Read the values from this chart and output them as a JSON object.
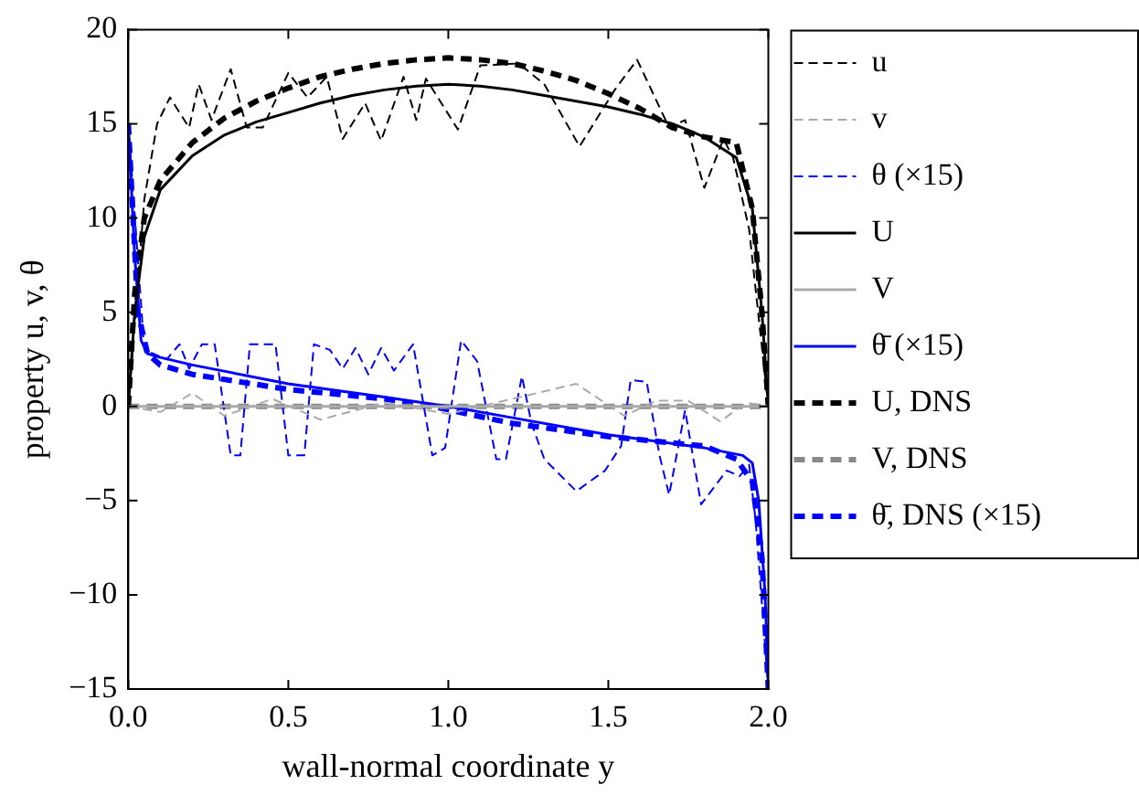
{
  "chart_data": {
    "type": "line",
    "xlabel": "wall-normal coordinate y",
    "ylabel": "property u, v, θ",
    "xlim": [
      0,
      2
    ],
    "ylim": [
      -15,
      20
    ],
    "xticks": [
      {
        "value": 0,
        "label": "0.0"
      },
      {
        "value": 0.5,
        "label": "0.5"
      },
      {
        "value": 1,
        "label": "1.0"
      },
      {
        "value": 1.5,
        "label": "1.5"
      },
      {
        "value": 2,
        "label": "2.0"
      }
    ],
    "yticks": [
      {
        "value": -15,
        "label": "−15"
      },
      {
        "value": -10,
        "label": "−10"
      },
      {
        "value": -5,
        "label": "−5"
      },
      0,
      5,
      10,
      15,
      20
    ],
    "grid": false,
    "legend": "right",
    "series": [
      {
        "name": "u",
        "color": "#000000",
        "line_style": "dashed",
        "x": [
          0,
          0.05,
          0.09,
          0.13,
          0.19,
          0.22,
          0.26,
          0.32,
          0.37,
          0.42,
          0.5,
          0.56,
          0.62,
          0.67,
          0.74,
          0.79,
          0.86,
          0.9,
          0.93,
          1.03,
          1.1,
          1.22,
          1.3,
          1.41,
          1.52,
          1.59,
          1.69,
          1.74,
          1.8,
          1.86,
          1.89,
          1.94,
          2
        ],
        "values": [
          0,
          11,
          15,
          16.4,
          14.8,
          17.1,
          15.2,
          17.9,
          14.8,
          14.8,
          17.7,
          16.4,
          17.5,
          14.2,
          16.1,
          14.1,
          17.5,
          15.2,
          17.4,
          14.7,
          18.1,
          18.2,
          17.1,
          13.8,
          16.8,
          18.4,
          14.8,
          15.2,
          11.6,
          14.2,
          13.2,
          9.4,
          0
        ]
      },
      {
        "name": "v",
        "color": "#aaaaaa",
        "line_style": "dashed",
        "x": [
          0,
          0.1,
          0.2,
          0.3,
          0.45,
          0.6,
          0.8,
          1.0,
          1.2,
          1.4,
          1.55,
          1.65,
          1.75,
          1.85,
          1.93,
          2
        ],
        "values": [
          0,
          -0.3,
          0.7,
          -0.5,
          0.4,
          -0.7,
          0.2,
          -0.4,
          0.4,
          1.2,
          -0.5,
          0.3,
          0.3,
          -0.8,
          0.2,
          0
        ]
      },
      {
        "name": "θ (×15)",
        "color": "#0000ff",
        "line_style": "dashed",
        "x": [
          0,
          0.05,
          0.12,
          0.16,
          0.19,
          0.23,
          0.27,
          0.32,
          0.35,
          0.38,
          0.46,
          0.5,
          0.55,
          0.58,
          0.63,
          0.67,
          0.71,
          0.75,
          0.79,
          0.83,
          0.89,
          0.95,
          0.99,
          1.04,
          1.09,
          1.15,
          1.18,
          1.23,
          1.26,
          1.3,
          1.4,
          1.49,
          1.54,
          1.57,
          1.62,
          1.66,
          1.69,
          1.74,
          1.79,
          1.87,
          1.91,
          1.94,
          1.96,
          2
        ],
        "values": [
          15,
          3,
          2.5,
          3.3,
          2,
          3.3,
          3.3,
          -2.6,
          -2.6,
          3.3,
          3.3,
          -2.6,
          -2.6,
          3.3,
          3,
          2,
          3.1,
          1.7,
          3.1,
          1.9,
          3.3,
          -2.6,
          -2.2,
          3.5,
          2.4,
          -2.8,
          -2.8,
          1.6,
          -0.9,
          -2.8,
          -4.5,
          -3.4,
          -2.1,
          1.4,
          1.3,
          -2.6,
          -4.7,
          -0.2,
          -5.2,
          -3.4,
          -3.7,
          -3.1,
          -6,
          -15
        ]
      },
      {
        "name": "U",
        "color": "#000000",
        "line_style": "solid",
        "x": [
          0,
          0.02,
          0.05,
          0.1,
          0.2,
          0.3,
          0.4,
          0.5,
          0.6,
          0.7,
          0.8,
          0.9,
          1.0,
          1.1,
          1.2,
          1.3,
          1.4,
          1.5,
          1.6,
          1.7,
          1.8,
          1.9,
          1.95,
          1.98,
          2
        ],
        "values": [
          0,
          5,
          9,
          11.5,
          13.3,
          14.4,
          15.1,
          15.6,
          16.1,
          16.5,
          16.8,
          17,
          17.1,
          17,
          16.8,
          16.5,
          16.2,
          15.9,
          15.5,
          15,
          14.3,
          13.2,
          10.5,
          5,
          0
        ]
      },
      {
        "name": "V",
        "color": "#aaaaaa",
        "line_style": "solid",
        "x": [
          0,
          2
        ],
        "values": [
          0,
          0
        ]
      },
      {
        "name": "θ̄ (×15)",
        "color": "#0000ff",
        "line_style": "solid",
        "x": [
          0,
          0.02,
          0.04,
          0.06,
          0.1,
          0.2,
          0.5,
          0.8,
          1.0,
          1.2,
          1.5,
          1.8,
          1.92,
          1.95,
          1.97,
          1.99,
          2
        ],
        "values": [
          15,
          8,
          3.5,
          2.8,
          2.6,
          2.2,
          1.2,
          0.5,
          0,
          -0.6,
          -1.5,
          -2.2,
          -2.6,
          -3,
          -5,
          -10,
          -15
        ]
      },
      {
        "name": "U, DNS",
        "color": "#000000",
        "line_style": "dashed",
        "x": [
          0,
          0.02,
          0.05,
          0.1,
          0.2,
          0.3,
          0.4,
          0.5,
          0.6,
          0.7,
          0.8,
          0.9,
          1.0,
          1.1,
          1.2,
          1.3,
          1.4,
          1.5,
          1.6,
          1.7,
          1.8,
          1.9,
          1.95,
          1.98,
          2
        ],
        "values": [
          0,
          6,
          10,
          12,
          14,
          15.3,
          16.2,
          16.9,
          17.5,
          17.9,
          18.2,
          18.4,
          18.5,
          18.4,
          18.2,
          17.8,
          17.3,
          16.6,
          15.8,
          14.8,
          14.3,
          14,
          10.5,
          5,
          0
        ]
      },
      {
        "name": "V, DNS",
        "color": "#888888",
        "line_style": "dashed",
        "x": [
          0,
          2
        ],
        "values": [
          0,
          0
        ]
      },
      {
        "name": "θ̄, DNS (×15)",
        "color": "#0000ff",
        "line_style": "dashed",
        "x": [
          0,
          0.03,
          0.06,
          0.1,
          0.2,
          0.5,
          0.8,
          0.95,
          1.2,
          1.5,
          1.8,
          1.9,
          1.95,
          1.98,
          2
        ],
        "values": [
          15,
          5,
          2.8,
          2.2,
          1.7,
          0.9,
          0.4,
          0,
          -0.9,
          -1.6,
          -2.1,
          -2.8,
          -4,
          -8,
          -15
        ]
      }
    ]
  }
}
